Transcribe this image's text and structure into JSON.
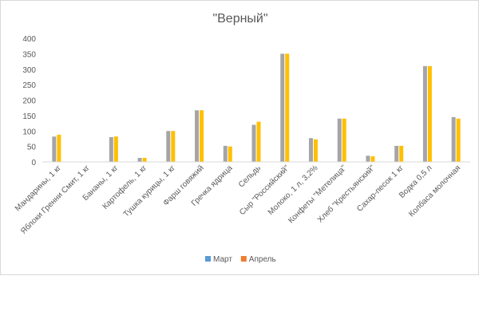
{
  "chart_data": {
    "type": "bar",
    "title": "\"Верный\"",
    "xlabel": "",
    "ylabel": "",
    "ylim": [
      0,
      400
    ],
    "yticks": [
      0,
      50,
      100,
      150,
      200,
      250,
      300,
      350,
      400
    ],
    "grid": false,
    "legend_position": "bottom",
    "categories": [
      "Мандарины, 1 кг",
      "Яблоки Гренни Смит, 1 кг",
      "Бананы, 1 кг",
      "Картофель, 1 кг",
      "Тушка курицы, 1 кг",
      "Фарш говяжий",
      "Гречка ядрица",
      "Сельдь",
      "Сыр \"Российский\"",
      "Молоко, 1 л, 3,2%",
      "Конфеты \"Метелица\"",
      "Хлеб \"Крестьянский\"",
      "Сахар-песок 1 кг",
      "Водка 0,5 л",
      "Колбаса молочная"
    ],
    "legend": [
      {
        "name": "Март",
        "color": "#5b9bd5"
      },
      {
        "name": "Апрель",
        "color": "#ed7d31"
      }
    ],
    "series": [
      {
        "color": "#a5a5a5",
        "values": [
          82,
          0,
          80,
          13,
          100,
          167,
          52,
          120,
          350,
          77,
          140,
          20,
          52,
          310,
          145
        ]
      },
      {
        "color": "#ffc000",
        "values": [
          88,
          0,
          82,
          13,
          100,
          167,
          50,
          130,
          350,
          73,
          140,
          18,
          52,
          310,
          140
        ]
      }
    ]
  }
}
